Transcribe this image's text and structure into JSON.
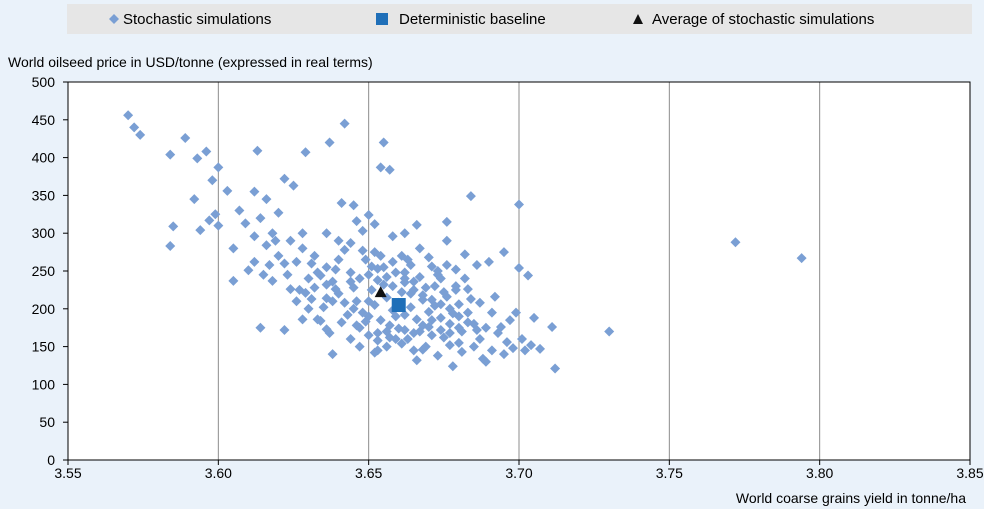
{
  "legend": {
    "stochastic_label": "Stochastic simulations",
    "deterministic_label": "Deterministic baseline",
    "average_label": "Average of stochastic simulations"
  },
  "colors": {
    "background": "#eaf2fa",
    "legend_bg": "#e6e6e6",
    "stochastic": "#7a9fd4",
    "deterministic": "#1f6fb8",
    "average": "#111111"
  },
  "chart_data": {
    "type": "scatter",
    "title": "",
    "ylabel": "World oilseed price in USD/tonne (expressed in real terms)",
    "xlabel": "World coarse grains yield in tonne/ha",
    "xlim": [
      3.55,
      3.85
    ],
    "ylim": [
      0,
      500
    ],
    "x_ticks": [
      "3.55",
      "3.60",
      "3.65",
      "3.70",
      "3.75",
      "3.80",
      "3.85"
    ],
    "y_ticks": [
      "0",
      "50",
      "100",
      "150",
      "200",
      "250",
      "300",
      "350",
      "400",
      "450",
      "500"
    ],
    "grid": "vertical",
    "legend_position": "top",
    "series": [
      {
        "name": "Stochastic simulations",
        "marker": "diamond",
        "points": [
          [
            3.57,
            456
          ],
          [
            3.572,
            440
          ],
          [
            3.574,
            430
          ],
          [
            3.584,
            404
          ],
          [
            3.589,
            426
          ],
          [
            3.593,
            399
          ],
          [
            3.596,
            408
          ],
          [
            3.598,
            370
          ],
          [
            3.6,
            387
          ],
          [
            3.603,
            356
          ],
          [
            3.613,
            409
          ],
          [
            3.612,
            355
          ],
          [
            3.616,
            345
          ],
          [
            3.62,
            327
          ],
          [
            3.622,
            372
          ],
          [
            3.625,
            363
          ],
          [
            3.629,
            407
          ],
          [
            3.637,
            420
          ],
          [
            3.642,
            445
          ],
          [
            3.655,
            420
          ],
          [
            3.654,
            387
          ],
          [
            3.657,
            384
          ],
          [
            3.585,
            309
          ],
          [
            3.592,
            345
          ],
          [
            3.597,
            317
          ],
          [
            3.599,
            325
          ],
          [
            3.594,
            304
          ],
          [
            3.6,
            310
          ],
          [
            3.607,
            330
          ],
          [
            3.609,
            313
          ],
          [
            3.605,
            280
          ],
          [
            3.584,
            283
          ],
          [
            3.61,
            251
          ],
          [
            3.605,
            237
          ],
          [
            3.612,
            262
          ],
          [
            3.615,
            245
          ],
          [
            3.618,
            237
          ],
          [
            3.614,
            175
          ],
          [
            3.622,
            172
          ],
          [
            3.627,
            225
          ],
          [
            3.629,
            221
          ],
          [
            3.631,
            213
          ],
          [
            3.633,
            186
          ],
          [
            3.636,
            173
          ],
          [
            3.638,
            140
          ],
          [
            3.641,
            340
          ],
          [
            3.645,
            337
          ],
          [
            3.65,
            324
          ],
          [
            3.651,
            256
          ],
          [
            3.653,
            253
          ],
          [
            3.662,
            240
          ],
          [
            3.666,
            311
          ],
          [
            3.676,
            315
          ],
          [
            3.684,
            349
          ],
          [
            3.7,
            338
          ],
          [
            3.703,
            244
          ],
          [
            3.704,
            152
          ],
          [
            3.707,
            147
          ],
          [
            3.711,
            176
          ],
          [
            3.712,
            121
          ],
          [
            3.73,
            170
          ],
          [
            3.7,
            254
          ],
          [
            3.698,
            148
          ],
          [
            3.695,
            275
          ],
          [
            3.692,
            216
          ],
          [
            3.69,
            262
          ],
          [
            3.688,
            134
          ],
          [
            3.686,
            258
          ],
          [
            3.684,
            213
          ],
          [
            3.682,
            240
          ],
          [
            3.68,
            155
          ],
          [
            3.678,
            124
          ],
          [
            3.676,
            290
          ],
          [
            3.674,
            240
          ],
          [
            3.672,
            230
          ],
          [
            3.67,
            176
          ],
          [
            3.668,
            146
          ],
          [
            3.666,
            132
          ],
          [
            3.664,
            220
          ],
          [
            3.662,
            248
          ],
          [
            3.66,
            174
          ],
          [
            3.658,
            230
          ],
          [
            3.656,
            150
          ],
          [
            3.654,
            270
          ],
          [
            3.652,
            142
          ],
          [
            3.65,
            190
          ],
          [
            3.648,
            277
          ],
          [
            3.646,
            178
          ],
          [
            3.644,
            236
          ],
          [
            3.642,
            278
          ],
          [
            3.64,
            265
          ],
          [
            3.638,
            210
          ],
          [
            3.636,
            255
          ],
          [
            3.634,
            184
          ],
          [
            3.632,
            270
          ],
          [
            3.63,
            240
          ],
          [
            3.628,
            280
          ],
          [
            3.626,
            262
          ],
          [
            3.624,
            290
          ],
          [
            3.622,
            260
          ],
          [
            3.62,
            270
          ],
          [
            3.618,
            300
          ],
          [
            3.616,
            284
          ],
          [
            3.614,
            320
          ],
          [
            3.612,
            296
          ],
          [
            3.645,
            200
          ],
          [
            3.648,
            195
          ],
          [
            3.65,
            210
          ],
          [
            3.652,
            205
          ],
          [
            3.654,
            185
          ],
          [
            3.656,
            215
          ],
          [
            3.658,
            198
          ],
          [
            3.66,
            208
          ],
          [
            3.662,
            192
          ],
          [
            3.664,
            202
          ],
          [
            3.666,
            186
          ],
          [
            3.668,
            212
          ],
          [
            3.67,
            196
          ],
          [
            3.672,
            204
          ],
          [
            3.674,
            188
          ],
          [
            3.676,
            216
          ],
          [
            3.678,
            194
          ],
          [
            3.68,
            206
          ],
          [
            3.646,
            210
          ],
          [
            3.649,
            183
          ],
          [
            3.651,
            225
          ],
          [
            3.653,
            168
          ],
          [
            3.655,
            232
          ],
          [
            3.657,
            178
          ],
          [
            3.659,
            190
          ],
          [
            3.661,
            222
          ],
          [
            3.663,
            160
          ],
          [
            3.665,
            236
          ],
          [
            3.667,
            170
          ],
          [
            3.669,
            228
          ],
          [
            3.671,
            165
          ],
          [
            3.673,
            250
          ],
          [
            3.675,
            162
          ],
          [
            3.677,
            180
          ],
          [
            3.679,
            225
          ],
          [
            3.681,
            170
          ],
          [
            3.683,
            195
          ],
          [
            3.685,
            180
          ],
          [
            3.687,
            160
          ],
          [
            3.689,
            175
          ],
          [
            3.691,
            145
          ],
          [
            3.693,
            168
          ],
          [
            3.695,
            140
          ],
          [
            3.697,
            185
          ],
          [
            3.699,
            195
          ],
          [
            3.701,
            160
          ],
          [
            3.705,
            188
          ],
          [
            3.64,
            220
          ],
          [
            3.638,
            236
          ],
          [
            3.636,
            214
          ],
          [
            3.634,
            244
          ],
          [
            3.632,
            228
          ],
          [
            3.63,
            200
          ],
          [
            3.628,
            186
          ],
          [
            3.626,
            210
          ],
          [
            3.624,
            226
          ],
          [
            3.643,
            192
          ],
          [
            3.641,
            182
          ],
          [
            3.639,
            252
          ],
          [
            3.637,
            168
          ],
          [
            3.635,
            202
          ],
          [
            3.633,
            248
          ],
          [
            3.631,
            260
          ],
          [
            3.644,
            160
          ],
          [
            3.647,
            150
          ],
          [
            3.653,
            145
          ],
          [
            3.657,
            162
          ],
          [
            3.661,
            154
          ],
          [
            3.665,
            145
          ],
          [
            3.669,
            150
          ],
          [
            3.673,
            138
          ],
          [
            3.677,
            152
          ],
          [
            3.681,
            143
          ],
          [
            3.685,
            150
          ],
          [
            3.689,
            130
          ],
          [
            3.649,
            265
          ],
          [
            3.652,
            275
          ],
          [
            3.655,
            255
          ],
          [
            3.658,
            262
          ],
          [
            3.661,
            270
          ],
          [
            3.664,
            258
          ],
          [
            3.667,
            280
          ],
          [
            3.67,
            268
          ],
          [
            3.673,
            245
          ],
          [
            3.676,
            258
          ],
          [
            3.679,
            252
          ],
          [
            3.682,
            272
          ],
          [
            3.662,
            300
          ],
          [
            3.658,
            296
          ],
          [
            3.652,
            312
          ],
          [
            3.648,
            303
          ],
          [
            3.646,
            316
          ],
          [
            3.644,
            287
          ],
          [
            3.636,
            300
          ],
          [
            3.64,
            290
          ],
          [
            3.628,
            300
          ],
          [
            3.623,
            245
          ],
          [
            3.619,
            290
          ],
          [
            3.617,
            258
          ],
          [
            3.636,
            232
          ],
          [
            3.639,
            226
          ],
          [
            3.642,
            208
          ],
          [
            3.644,
            248
          ],
          [
            3.663,
            265
          ],
          [
            3.667,
            242
          ],
          [
            3.671,
            256
          ],
          [
            3.675,
            222
          ],
          [
            3.679,
            230
          ],
          [
            3.683,
            226
          ],
          [
            3.687,
            208
          ],
          [
            3.691,
            195
          ],
          [
            3.694,
            176
          ],
          [
            3.696,
            156
          ],
          [
            3.702,
            145
          ],
          [
            3.645,
            228
          ],
          [
            3.647,
            240
          ],
          [
            3.65,
            245
          ],
          [
            3.653,
            238
          ],
          [
            3.656,
            242
          ],
          [
            3.659,
            248
          ],
          [
            3.662,
            235
          ],
          [
            3.665,
            225
          ],
          [
            3.668,
            218
          ],
          [
            3.671,
            212
          ],
          [
            3.674,
            206
          ],
          [
            3.677,
            200
          ],
          [
            3.68,
            190
          ],
          [
            3.683,
            182
          ],
          [
            3.686,
            172
          ],
          [
            3.647,
            175
          ],
          [
            3.65,
            165
          ],
          [
            3.653,
            158
          ],
          [
            3.656,
            170
          ],
          [
            3.659,
            160
          ],
          [
            3.662,
            172
          ],
          [
            3.665,
            168
          ],
          [
            3.668,
            178
          ],
          [
            3.671,
            185
          ],
          [
            3.674,
            172
          ],
          [
            3.677,
            168
          ],
          [
            3.68,
            175
          ],
          [
            3.772,
            288
          ],
          [
            3.794,
            267
          ]
        ]
      },
      {
        "name": "Deterministic baseline",
        "marker": "square",
        "points": [
          [
            3.66,
            205
          ]
        ]
      },
      {
        "name": "Average of stochastic simulations",
        "marker": "triangle",
        "points": [
          [
            3.654,
            222
          ]
        ]
      }
    ]
  }
}
